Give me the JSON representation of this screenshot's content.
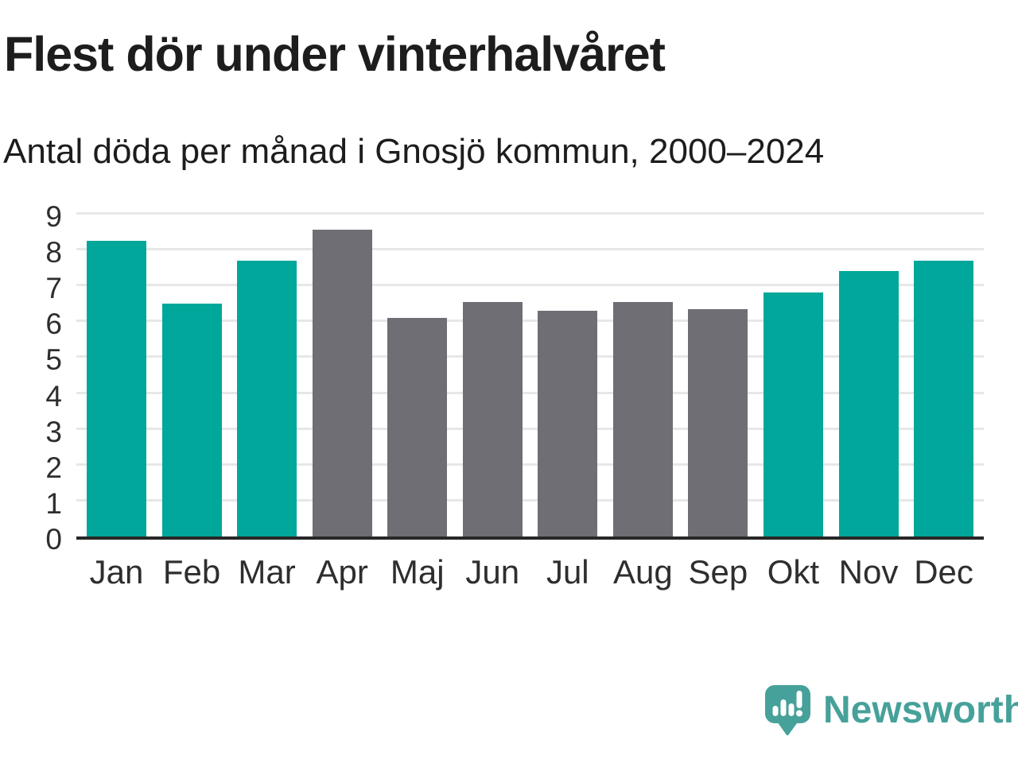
{
  "header": {
    "title": "Flest dör under vinterhalvåret",
    "subtitle": "Antal döda per månad i Gnosjö kommun, 2000–2024"
  },
  "branding": {
    "logo_text": "Newsworthy",
    "logo_icon": "speech-bubble-bar-chart-icon",
    "brand_color": "#46a19a"
  },
  "colors": {
    "winter_highlight_teal": "#00a79a",
    "summer_gray": "#6f6e74",
    "gridline": "#e7e7e7",
    "axis_line": "#272727",
    "text_dark": "#1d1d1d"
  },
  "chart_data": {
    "type": "bar",
    "title": "Flest dör under vinterhalvåret",
    "subtitle": "Antal döda per månad i Gnosjö kommun, 2000–2024",
    "categories": [
      "Jan",
      "Feb",
      "Mar",
      "Apr",
      "Maj",
      "Jun",
      "Jul",
      "Aug",
      "Sep",
      "Okt",
      "Nov",
      "Dec"
    ],
    "values": [
      8.25,
      6.5,
      7.7,
      8.55,
      6.1,
      6.55,
      6.3,
      6.55,
      6.35,
      6.8,
      7.4,
      7.7
    ],
    "highlighted": [
      true,
      true,
      true,
      false,
      false,
      false,
      false,
      false,
      false,
      true,
      true,
      true
    ],
    "bar_colors": {
      "highlight": "#00a79a",
      "default": "#6f6e74"
    },
    "xlabel": "",
    "ylabel": "",
    "ylim": [
      0,
      9
    ],
    "yticks": [
      0,
      1,
      2,
      3,
      4,
      5,
      6,
      7,
      8,
      9
    ],
    "grid": true,
    "legend": "none"
  }
}
